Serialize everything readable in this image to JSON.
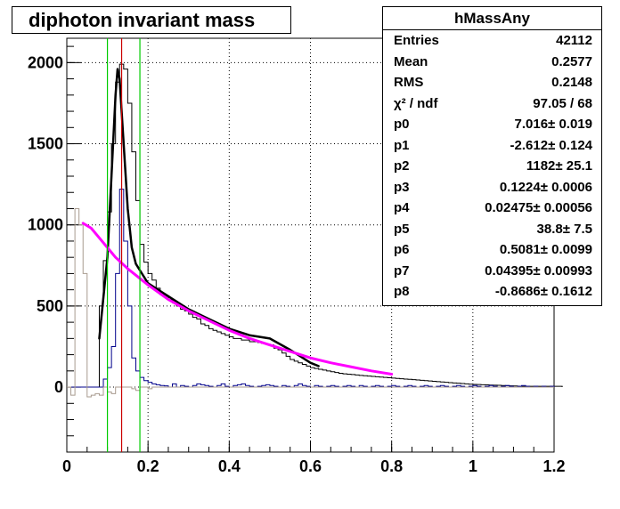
{
  "title": "diphoton invariant mass",
  "stats": {
    "name": "hMassAny",
    "rows": [
      {
        "label": "Entries",
        "value": "42112"
      },
      {
        "label": "Mean",
        "value": "0.2577"
      },
      {
        "label": "RMS",
        "value": "0.2148"
      },
      {
        "label": "χ² / ndf",
        "value": "97.05 / 68"
      },
      {
        "label": "p0",
        "value": "7.016± 0.019"
      },
      {
        "label": "p1",
        "value": "-2.612± 0.124"
      },
      {
        "label": "p2",
        "value": "1182± 25.1"
      },
      {
        "label": "p3",
        "value": "0.1224± 0.0006"
      },
      {
        "label": "p4",
        "value": "0.02475± 0.00056"
      },
      {
        "label": "p5",
        "value": "38.8± 7.5"
      },
      {
        "label": "p6",
        "value": "0.5081± 0.0099"
      },
      {
        "label": "p7",
        "value": "0.04395± 0.00993"
      },
      {
        "label": "p8",
        "value": "-0.8686± 0.1612"
      }
    ]
  },
  "chart_data": {
    "type": "line",
    "title": "diphoton invariant mass",
    "xlim": [
      0,
      1.2
    ],
    "ylim": [
      -400,
      2150
    ],
    "x_ticks": [
      "0",
      "0.2",
      "0.4",
      "0.6",
      "0.8",
      "1",
      "1.2"
    ],
    "y_ticks": [
      "0",
      "500",
      "1000",
      "1500",
      "2000"
    ],
    "grid": true,
    "bin_width": 0.01,
    "series": [
      {
        "style": "step",
        "color": "#000000",
        "values": [
          0,
          0,
          0,
          0,
          0,
          0,
          0,
          0,
          500,
          780,
          1080,
          1500,
          1880,
          1990,
          1960,
          1750,
          1450,
          1150,
          880,
          770,
          700,
          660,
          610,
          570,
          560,
          540,
          520,
          500,
          480,
          470,
          450,
          430,
          420,
          390,
          380,
          360,
          350,
          340,
          330,
          320,
          310,
          300,
          300,
          290,
          290,
          280,
          280,
          275,
          270,
          265,
          260,
          240,
          230,
          210,
          190,
          170,
          160,
          150,
          140,
          130,
          120,
          115,
          110,
          105,
          100,
          95,
          90,
          85,
          82,
          80,
          78,
          75,
          72,
          70,
          68,
          66,
          64,
          62,
          60,
          58,
          56,
          54,
          52,
          50,
          48,
          46,
          44,
          42,
          40,
          38,
          36,
          34,
          32,
          30,
          28,
          26,
          24,
          22,
          20,
          18,
          17,
          16,
          15,
          14,
          13,
          12,
          11,
          10,
          9,
          8,
          7,
          6,
          5,
          5,
          5,
          5,
          5,
          5,
          5,
          5,
          5,
          5
        ]
      },
      {
        "style": "step",
        "color": "#00008b",
        "values": [
          0,
          0,
          0,
          0,
          0,
          0,
          0,
          0,
          0,
          50,
          120,
          250,
          700,
          1220,
          900,
          500,
          180,
          100,
          60,
          40,
          30,
          20,
          15,
          10,
          8,
          0,
          20,
          0,
          10,
          5,
          0,
          10,
          20,
          15,
          10,
          5,
          0,
          10,
          20,
          5,
          0,
          10,
          15,
          20,
          10,
          5,
          0,
          5,
          10,
          15,
          10,
          5,
          0,
          10,
          5,
          0,
          10,
          20,
          10,
          5,
          0,
          10,
          5,
          0,
          5,
          10,
          5,
          0,
          5,
          10,
          5,
          0,
          10,
          5,
          0,
          5,
          10,
          5,
          0,
          5,
          10,
          5,
          0,
          5,
          10,
          5,
          0,
          5,
          10,
          5,
          0,
          5,
          10,
          5,
          0,
          5,
          10,
          5,
          0,
          5,
          10,
          5,
          0,
          5,
          10,
          5,
          0,
          5,
          10,
          5,
          0,
          5,
          10,
          5,
          0,
          5,
          0,
          5,
          0,
          5
        ]
      },
      {
        "style": "step",
        "color": "#a89b8f",
        "values": [
          0,
          -50,
          1100,
          1000,
          700,
          -60,
          -50,
          -40,
          -50,
          0,
          -30,
          -40,
          0,
          0,
          0,
          0,
          -10,
          -20,
          0,
          0,
          -10,
          0,
          0,
          0,
          0,
          0,
          0,
          0,
          0,
          0,
          0,
          0,
          0,
          0,
          0,
          0,
          0,
          0,
          0,
          0,
          0,
          0,
          0,
          0,
          0,
          0,
          0,
          0,
          0,
          0,
          0,
          0,
          0,
          0,
          0,
          0,
          0,
          0,
          0,
          0,
          0,
          0,
          0,
          0,
          0,
          0,
          0,
          0,
          0,
          0,
          0,
          0,
          0,
          0,
          0,
          0,
          0,
          0,
          0,
          0,
          0,
          0,
          0,
          0,
          0,
          0,
          0,
          0,
          0,
          0,
          0,
          0,
          0,
          0,
          0,
          0,
          0,
          0,
          0,
          0,
          0,
          0,
          0,
          0,
          0,
          0,
          0,
          0,
          0,
          0,
          0,
          0,
          0,
          0,
          0,
          0,
          0,
          0,
          0,
          0
        ]
      },
      {
        "style": "curve",
        "color": "#000000",
        "width": 2.5,
        "points": [
          [
            0.08,
            300
          ],
          [
            0.1,
            800
          ],
          [
            0.11,
            1300
          ],
          [
            0.12,
            1800
          ],
          [
            0.125,
            1960
          ],
          [
            0.13,
            1900
          ],
          [
            0.14,
            1500
          ],
          [
            0.15,
            1100
          ],
          [
            0.16,
            860
          ],
          [
            0.17,
            760
          ],
          [
            0.18,
            720
          ],
          [
            0.2,
            640
          ],
          [
            0.25,
            560
          ],
          [
            0.3,
            480
          ],
          [
            0.35,
            420
          ],
          [
            0.4,
            360
          ],
          [
            0.45,
            320
          ],
          [
            0.5,
            300
          ],
          [
            0.55,
            230
          ],
          [
            0.6,
            150
          ],
          [
            0.62,
            130
          ]
        ]
      },
      {
        "style": "curve",
        "color": "#ff00ff",
        "width": 3,
        "points": [
          [
            0.04,
            1010
          ],
          [
            0.06,
            980
          ],
          [
            0.08,
            920
          ],
          [
            0.1,
            860
          ],
          [
            0.12,
            800
          ],
          [
            0.15,
            730
          ],
          [
            0.2,
            630
          ],
          [
            0.25,
            540
          ],
          [
            0.3,
            470
          ],
          [
            0.35,
            410
          ],
          [
            0.4,
            350
          ],
          [
            0.45,
            300
          ],
          [
            0.5,
            260
          ],
          [
            0.55,
            220
          ],
          [
            0.6,
            180
          ],
          [
            0.65,
            150
          ],
          [
            0.7,
            125
          ],
          [
            0.75,
            100
          ],
          [
            0.8,
            80
          ]
        ]
      }
    ],
    "markers": [
      {
        "x": 0.1,
        "color": "#00cc00"
      },
      {
        "x": 0.135,
        "color": "#cc0000"
      },
      {
        "x": 0.18,
        "color": "#00cc00"
      }
    ]
  }
}
